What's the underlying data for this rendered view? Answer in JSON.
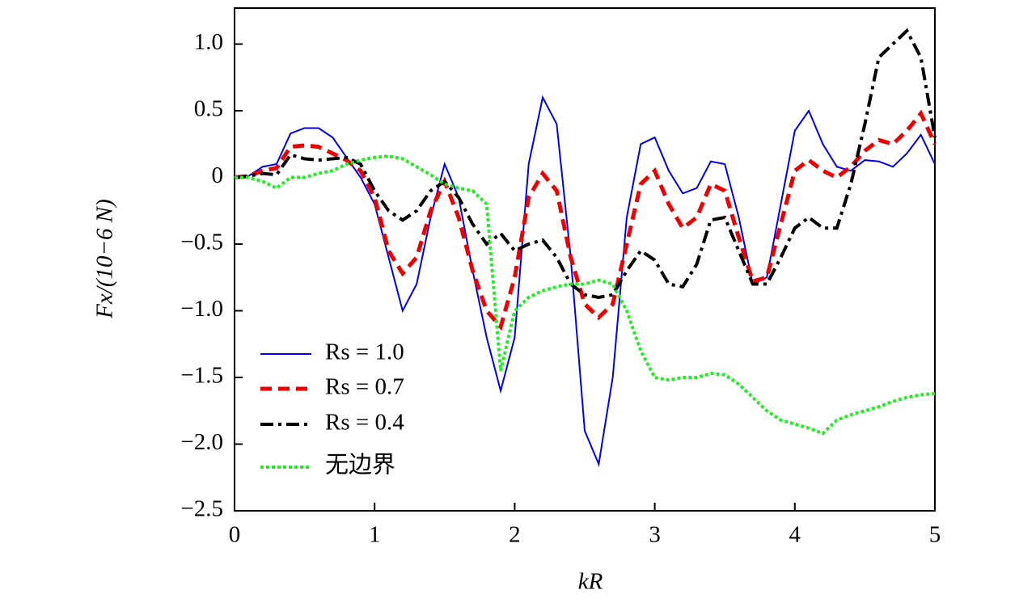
{
  "chart_data": {
    "type": "line",
    "xlabel": "kR",
    "ylabel": "Fx/(10−6 N)",
    "x": [
      0,
      0.1,
      0.2,
      0.3,
      0.4,
      0.5,
      0.6,
      0.7,
      0.8,
      0.9,
      1.0,
      1.1,
      1.2,
      1.3,
      1.4,
      1.5,
      1.6,
      1.7,
      1.8,
      1.9,
      2.0,
      2.1,
      2.2,
      2.3,
      2.4,
      2.5,
      2.6,
      2.7,
      2.8,
      2.9,
      3.0,
      3.1,
      3.2,
      3.3,
      3.4,
      3.5,
      3.6,
      3.7,
      3.8,
      3.9,
      4.0,
      4.1,
      4.2,
      4.3,
      4.4,
      4.5,
      4.6,
      4.7,
      4.8,
      4.9,
      5.0
    ],
    "series": [
      {
        "name": "Rs = 1.0",
        "color": "#0000ee",
        "linestyle": "solid",
        "values": [
          0,
          0.01,
          0.08,
          0.1,
          0.33,
          0.37,
          0.37,
          0.3,
          0.15,
          0.0,
          -0.2,
          -0.6,
          -1.0,
          -0.8,
          -0.3,
          0.1,
          -0.15,
          -0.7,
          -1.2,
          -1.6,
          -1.2,
          0.1,
          0.6,
          0.4,
          -0.6,
          -1.9,
          -2.15,
          -1.5,
          -0.3,
          0.25,
          0.3,
          0.05,
          -0.12,
          -0.08,
          0.12,
          0.1,
          -0.3,
          -0.8,
          -0.75,
          -0.2,
          0.35,
          0.5,
          0.25,
          0.08,
          0.05,
          0.13,
          0.12,
          0.08,
          0.18,
          0.32,
          0.1
        ]
      },
      {
        "name": "Rs = 0.7",
        "color": "#ee0000",
        "linestyle": "dashed",
        "values": [
          0,
          0.01,
          0.05,
          0.07,
          0.23,
          0.24,
          0.23,
          0.18,
          0.13,
          0.05,
          -0.15,
          -0.55,
          -0.72,
          -0.6,
          -0.25,
          -0.03,
          -0.3,
          -0.7,
          -1.0,
          -1.12,
          -0.75,
          -0.15,
          0.03,
          -0.1,
          -0.6,
          -0.95,
          -1.05,
          -0.95,
          -0.5,
          -0.05,
          0.05,
          -0.2,
          -0.38,
          -0.3,
          -0.05,
          -0.1,
          -0.45,
          -0.78,
          -0.75,
          -0.35,
          0.05,
          0.13,
          0.05,
          0.0,
          0.08,
          0.2,
          0.28,
          0.25,
          0.35,
          0.48,
          0.25
        ]
      },
      {
        "name": "Rs = 0.4",
        "color": "#000000",
        "linestyle": "dashdot",
        "values": [
          0,
          0.01,
          0.03,
          0.02,
          0.17,
          0.14,
          0.13,
          0.14,
          0.15,
          0.1,
          -0.1,
          -0.25,
          -0.32,
          -0.25,
          -0.1,
          -0.03,
          -0.15,
          -0.35,
          -0.5,
          -0.42,
          -0.55,
          -0.5,
          -0.47,
          -0.6,
          -0.8,
          -0.88,
          -0.9,
          -0.88,
          -0.7,
          -0.55,
          -0.62,
          -0.8,
          -0.82,
          -0.65,
          -0.32,
          -0.3,
          -0.55,
          -0.8,
          -0.8,
          -0.6,
          -0.38,
          -0.3,
          -0.38,
          -0.38,
          -0.05,
          0.4,
          0.9,
          1.0,
          1.1,
          0.9,
          0.3
        ]
      },
      {
        "name": "无边界",
        "color": "#22ee22",
        "linestyle": "dotted",
        "values": [
          0,
          0.0,
          -0.03,
          -0.08,
          0.0,
          0.0,
          0.03,
          0.05,
          0.1,
          0.13,
          0.15,
          0.16,
          0.14,
          0.08,
          0.02,
          -0.05,
          -0.08,
          -0.1,
          -0.2,
          -1.45,
          -1.0,
          -0.9,
          -0.85,
          -0.82,
          -0.8,
          -0.8,
          -0.77,
          -0.8,
          -1.0,
          -1.3,
          -1.5,
          -1.52,
          -1.5,
          -1.5,
          -1.47,
          -1.48,
          -1.55,
          -1.65,
          -1.75,
          -1.82,
          -1.85,
          -1.88,
          -1.92,
          -1.82,
          -1.78,
          -1.75,
          -1.72,
          -1.68,
          -1.65,
          -1.63,
          -1.62
        ]
      }
    ],
    "xlim": [
      0,
      5
    ],
    "xticks": [
      0,
      1,
      2,
      3,
      4,
      5
    ],
    "ylim": [
      -2.5,
      1.27
    ],
    "yticks": [
      {
        "value": -2.5,
        "label": "−2.5"
      },
      {
        "value": -2,
        "label": "−2.0"
      },
      {
        "value": -1.5,
        "label": "−1.5"
      },
      {
        "value": -1,
        "label": "−1.0"
      },
      {
        "value": -0.5,
        "label": "−0.5"
      },
      0,
      0.5,
      {
        "value": 1,
        "label": "1.0"
      }
    ],
    "legend": "lower left",
    "grid": false
  }
}
